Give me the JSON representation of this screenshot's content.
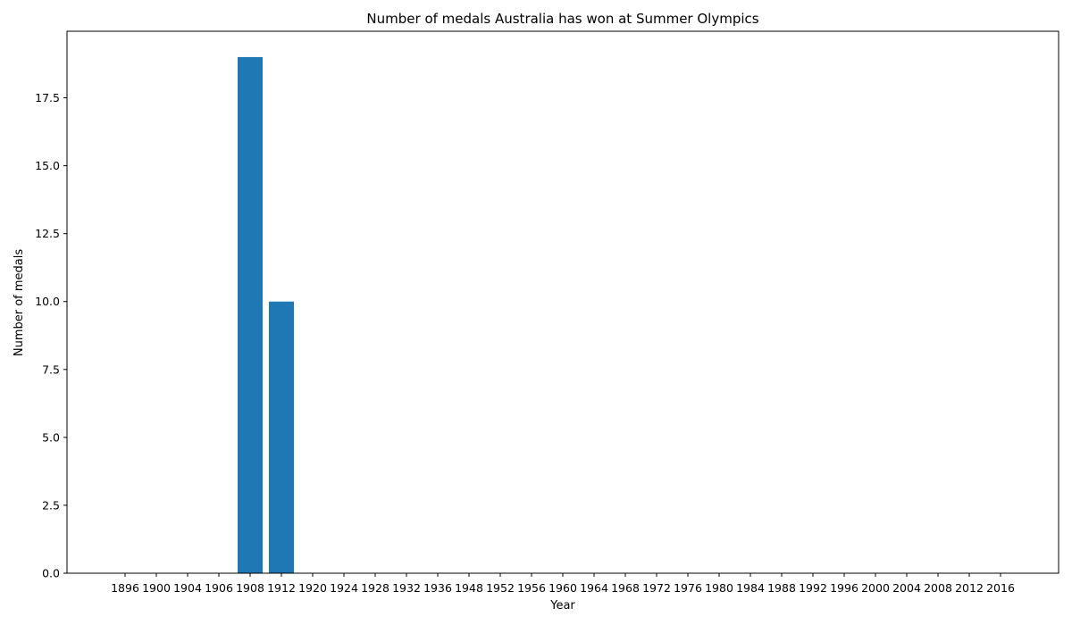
{
  "chart_data": {
    "type": "bar",
    "title": "Number of medals Australia has won at Summer Olympics",
    "xlabel": "Year",
    "ylabel": "Number of medals",
    "categories": [
      "1896",
      "1900",
      "1904",
      "1906",
      "1908",
      "1912",
      "1920",
      "1924",
      "1928",
      "1932",
      "1936",
      "1948",
      "1952",
      "1956",
      "1960",
      "1964",
      "1968",
      "1972",
      "1976",
      "1980",
      "1984",
      "1988",
      "1992",
      "1996",
      "2000",
      "2004",
      "2008",
      "2012",
      "2016"
    ],
    "values": [
      0,
      0,
      0,
      0,
      19,
      10,
      0,
      0,
      0,
      0,
      0,
      0,
      0,
      0,
      0,
      0,
      0,
      0,
      0,
      0,
      0,
      0,
      0,
      0,
      0,
      0,
      0,
      0,
      0
    ],
    "ylim": [
      0,
      19.95
    ],
    "yticks": [
      "0.0",
      "2.5",
      "5.0",
      "7.5",
      "10.0",
      "12.5",
      "15.0",
      "17.5"
    ],
    "bar_color": "#1f77b4",
    "grid": false,
    "legend": "none"
  }
}
